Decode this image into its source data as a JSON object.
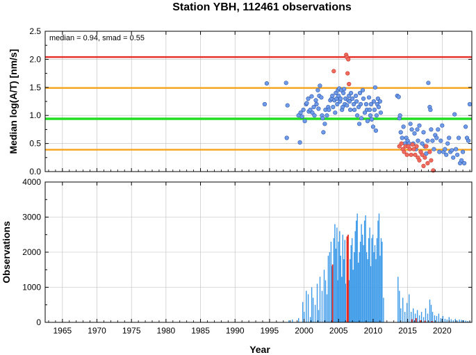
{
  "chart_data": [
    {
      "type": "scatter",
      "title": "Station YBH, 112461 observations",
      "ylabel": "Median log(A/T) [nm/s]",
      "annotation": "median = 0.94, smad = 0.55",
      "xlim": [
        1962.5,
        2024.3
      ],
      "ylim": [
        0.0,
        2.5
      ],
      "yticks": [
        "0.0",
        "0.5",
        "1.0",
        "1.5",
        "2.0",
        "2.5"
      ],
      "grid": true,
      "reference_lines": [
        {
          "y": 2.04,
          "color": "#e8302b"
        },
        {
          "y": 1.49,
          "color": "#f5a623"
        },
        {
          "y": 0.94,
          "color": "#22dd22"
        },
        {
          "y": 0.39,
          "color": "#f5a623"
        }
      ],
      "series": [
        {
          "color": "#6f9be8",
          "points": [
            [
              1994.3,
              1.2
            ],
            [
              1994.6,
              1.57
            ],
            [
              1997.4,
              1.58
            ],
            [
              1997.5,
              0.6
            ],
            [
              1997.6,
              1.18
            ],
            [
              1999.2,
              1.0
            ],
            [
              1999.4,
              0.52
            ],
            [
              1999.5,
              1.05
            ],
            [
              1999.7,
              0.98
            ],
            [
              1999.9,
              1.1
            ],
            [
              2000.1,
              0.9
            ],
            [
              2000.3,
              1.2
            ],
            [
              2000.4,
              1.22
            ],
            [
              2000.6,
              1.3
            ],
            [
              2000.7,
              1.07
            ],
            [
              2000.9,
              1.1
            ],
            [
              2001.1,
              1.34
            ],
            [
              2001.2,
              1.05
            ],
            [
              2001.4,
              1.15
            ],
            [
              2001.5,
              1.0
            ],
            [
              2001.7,
              1.27
            ],
            [
              2001.8,
              1.2
            ],
            [
              2002.0,
              1.45
            ],
            [
              2002.1,
              1.12
            ],
            [
              2002.2,
              1.35
            ],
            [
              2002.3,
              1.53
            ],
            [
              2002.5,
              1.32
            ],
            [
              2002.6,
              1.0
            ],
            [
              2002.7,
              0.95
            ],
            [
              2002.8,
              0.7
            ],
            [
              2003.0,
              0.85
            ],
            [
              2003.1,
              1.1
            ],
            [
              2003.3,
              1.0
            ],
            [
              2003.5,
              1.15
            ],
            [
              2003.6,
              1.1
            ],
            [
              2003.8,
              1.27
            ],
            [
              2004.0,
              1.3
            ],
            [
              2004.1,
              1.35
            ],
            [
              2004.2,
              1.15
            ],
            [
              2004.4,
              1.27
            ],
            [
              2004.5,
              1.05
            ],
            [
              2004.6,
              1.4
            ],
            [
              2004.7,
              1.3
            ],
            [
              2004.8,
              1.2
            ],
            [
              2004.9,
              1.45
            ],
            [
              2005.0,
              1.35
            ],
            [
              2005.1,
              1.48
            ],
            [
              2005.2,
              1.25
            ],
            [
              2005.3,
              1.3
            ],
            [
              2005.4,
              1.45
            ],
            [
              2005.5,
              1.1
            ],
            [
              2005.6,
              1.15
            ],
            [
              2005.7,
              1.4
            ],
            [
              2005.8,
              1.47
            ],
            [
              2005.9,
              1.2
            ],
            [
              2006.0,
              1.3
            ],
            [
              2006.2,
              1.18
            ],
            [
              2006.4,
              1.27
            ],
            [
              2006.5,
              1.35
            ],
            [
              2006.6,
              1.25
            ],
            [
              2006.7,
              1.1
            ],
            [
              2006.8,
              1.4
            ],
            [
              2007.0,
              1.3
            ],
            [
              2007.2,
              1.2
            ],
            [
              2007.3,
              1.1
            ],
            [
              2007.5,
              1.35
            ],
            [
              2007.6,
              1.25
            ],
            [
              2007.7,
              1.0
            ],
            [
              2007.9,
              1.15
            ],
            [
              2008.0,
              0.85
            ],
            [
              2008.1,
              1.4
            ],
            [
              2008.2,
              1.2
            ],
            [
              2008.3,
              0.95
            ],
            [
              2008.5,
              1.45
            ],
            [
              2008.6,
              1.3
            ],
            [
              2008.8,
              1.05
            ],
            [
              2009.0,
              1.2
            ],
            [
              2009.1,
              1.1
            ],
            [
              2009.2,
              0.9
            ],
            [
              2009.4,
              1.32
            ],
            [
              2009.5,
              1.1
            ],
            [
              2009.6,
              1.0
            ],
            [
              2009.7,
              1.2
            ],
            [
              2009.8,
              0.93
            ],
            [
              2010.0,
              0.8
            ],
            [
              2010.1,
              1.25
            ],
            [
              2010.2,
              1.1
            ],
            [
              2010.3,
              1.5
            ],
            [
              2010.4,
              0.73
            ],
            [
              2010.5,
              1.0
            ],
            [
              2010.6,
              1.2
            ],
            [
              2010.7,
              1.3
            ],
            [
              2010.8,
              1.15
            ],
            [
              2011.0,
              1.25
            ],
            [
              2011.1,
              1.05
            ],
            [
              2013.5,
              1.35
            ],
            [
              2013.7,
              1.33
            ],
            [
              2013.8,
              0.95
            ],
            [
              2013.9,
              1.0
            ],
            [
              2014.0,
              0.7
            ],
            [
              2014.2,
              0.6
            ],
            [
              2014.4,
              0.8
            ],
            [
              2014.6,
              0.5
            ],
            [
              2014.8,
              0.6
            ],
            [
              2015.0,
              0.55
            ],
            [
              2015.2,
              0.5
            ],
            [
              2015.4,
              0.85
            ],
            [
              2015.6,
              0.75
            ],
            [
              2015.8,
              0.5
            ],
            [
              2016.0,
              0.68
            ],
            [
              2016.2,
              0.4
            ],
            [
              2016.4,
              0.75
            ],
            [
              2016.5,
              0.55
            ],
            [
              2016.7,
              0.82
            ],
            [
              2016.9,
              0.35
            ],
            [
              2017.1,
              0.5
            ],
            [
              2017.3,
              0.7
            ],
            [
              2017.5,
              0.45
            ],
            [
              2017.7,
              0.32
            ],
            [
              2017.9,
              0.55
            ],
            [
              2018.0,
              1.58
            ],
            [
              2018.2,
              1.15
            ],
            [
              2018.3,
              1.1
            ],
            [
              2018.4,
              0.75
            ],
            [
              2018.6,
              0.55
            ],
            [
              2018.8,
              0.4
            ],
            [
              2019.0,
              0.65
            ],
            [
              2019.2,
              0.6
            ],
            [
              2019.4,
              0.75
            ],
            [
              2019.6,
              0.35
            ],
            [
              2019.8,
              0.55
            ],
            [
              2020.0,
              0.82
            ],
            [
              2020.2,
              0.35
            ],
            [
              2020.4,
              0.4
            ],
            [
              2020.6,
              0.3
            ],
            [
              2020.8,
              0.5
            ],
            [
              2021.0,
              0.6
            ],
            [
              2021.2,
              0.35
            ],
            [
              2021.4,
              0.38
            ],
            [
              2021.6,
              0.25
            ],
            [
              2021.8,
              1.02
            ],
            [
              2022.0,
              0.4
            ],
            [
              2022.2,
              0.3
            ],
            [
              2022.4,
              0.6
            ],
            [
              2022.6,
              0.15
            ],
            [
              2022.8,
              0.2
            ],
            [
              2023.0,
              0.35
            ],
            [
              2023.2,
              0.15
            ],
            [
              2023.4,
              0.8
            ],
            [
              2023.6,
              0.6
            ],
            [
              2023.8,
              0.55
            ],
            [
              2024.0,
              1.2
            ]
          ]
        },
        {
          "color": "#f06a5e",
          "points": [
            [
              2004.3,
              1.79
            ],
            [
              2006.1,
              2.08
            ],
            [
              2006.2,
              2.04
            ],
            [
              2006.3,
              1.75
            ],
            [
              2006.4,
              2.0
            ],
            [
              2006.5,
              1.56
            ],
            [
              2013.8,
              0.45
            ],
            [
              2014.1,
              0.5
            ],
            [
              2014.3,
              0.4
            ],
            [
              2014.5,
              0.35
            ],
            [
              2014.7,
              0.45
            ],
            [
              2014.9,
              0.3
            ],
            [
              2015.1,
              0.45
            ],
            [
              2015.3,
              0.4
            ],
            [
              2015.5,
              0.3
            ],
            [
              2015.7,
              0.48
            ],
            [
              2015.9,
              0.4
            ],
            [
              2016.1,
              0.3
            ],
            [
              2016.3,
              0.45
            ],
            [
              2016.5,
              0.25
            ],
            [
              2016.7,
              0.2
            ],
            [
              2016.9,
              0.35
            ],
            [
              2017.1,
              0.3
            ],
            [
              2017.3,
              0.1
            ],
            [
              2017.5,
              0.25
            ],
            [
              2017.7,
              0.45
            ],
            [
              2017.9,
              0.15
            ],
            [
              2018.2,
              0.35
            ],
            [
              2018.4,
              0.2
            ],
            [
              2018.7,
              0.02
            ]
          ]
        }
      ]
    },
    {
      "type": "bar",
      "ylabel": "Observations",
      "xlabel": "Year",
      "xlim": [
        1962.5,
        2024.3
      ],
      "ylim": [
        0,
        4000
      ],
      "xticks": [
        "1965",
        "1970",
        "1975",
        "1980",
        "1985",
        "1990",
        "1995",
        "2000",
        "2005",
        "2010",
        "2015",
        "2020"
      ],
      "yticks": [
        "0",
        "1000",
        "2000",
        "3000",
        "4000"
      ],
      "grid": true,
      "series": [
        {
          "color": "#3c9ae8",
          "x": [
            1997.8,
            1998.3,
            1999.2,
            1999.8,
            2000.0,
            2000.3,
            2000.6,
            2000.9,
            2001.1,
            2001.3,
            2001.6,
            2001.9,
            2002.1,
            2002.3,
            2002.6,
            2002.9,
            2003.1,
            2003.3,
            2003.5,
            2003.7,
            2003.9,
            2004.0,
            2004.15,
            2004.3,
            2004.45,
            2004.6,
            2004.75,
            2004.85,
            2005.0,
            2005.15,
            2005.3,
            2005.45,
            2005.6,
            2005.75,
            2005.9,
            2006.0,
            2006.5,
            2006.65,
            2006.8,
            2006.95,
            2007.1,
            2007.25,
            2007.4,
            2007.55,
            2007.7,
            2007.85,
            2008.0,
            2008.15,
            2008.3,
            2008.45,
            2008.6,
            2008.75,
            2008.9,
            2009.05,
            2009.2,
            2009.35,
            2009.5,
            2009.65,
            2009.8,
            2009.95,
            2010.1,
            2010.25,
            2010.4,
            2010.55,
            2010.7,
            2010.85,
            2011.0,
            2011.15,
            2011.3,
            2011.5,
            2013.6,
            2013.8,
            2014.0,
            2014.3,
            2014.6,
            2014.9,
            2015.2,
            2015.5,
            2015.8,
            2016.1,
            2016.4,
            2016.7,
            2017.0,
            2017.3,
            2017.6,
            2017.9,
            2018.2,
            2018.4,
            2018.6,
            2018.9,
            2019.2,
            2019.5,
            2019.8,
            2020.1,
            2020.4,
            2020.7,
            2021.0,
            2021.3,
            2021.6,
            2021.9,
            2022.2,
            2022.5,
            2022.8,
            2023.1,
            2023.4,
            2023.7,
            2024.0
          ],
          "values": [
            60,
            80,
            120,
            580,
            300,
            900,
            800,
            150,
            1000,
            700,
            500,
            1100,
            350,
            1300,
            900,
            1500,
            1200,
            800,
            1900,
            2000,
            2300,
            1600,
            1400,
            2400,
            2800,
            2100,
            2700,
            1200,
            2300,
            2600,
            1900,
            1300,
            2500,
            1800,
            2350,
            1100,
            1200,
            1800,
            2200,
            2400,
            1500,
            2000,
            2600,
            2900,
            3100,
            1700,
            2000,
            2300,
            2800,
            2500,
            2200,
            2900,
            3050,
            2000,
            1800,
            2400,
            2700,
            1600,
            2400,
            2500,
            2000,
            2200,
            1800,
            2400,
            2900,
            3100,
            1900,
            2400,
            2300,
            700,
            1300,
            900,
            400,
            700,
            300,
            550,
            800,
            300,
            400,
            250,
            350,
            200,
            300,
            150,
            400,
            250,
            650,
            500,
            300,
            200,
            180,
            250,
            120,
            180,
            100,
            80,
            150,
            90,
            60,
            100,
            50,
            80,
            70,
            60,
            50,
            40,
            30
          ]
        },
        {
          "color": "#e52a20",
          "x": [
            2004.1,
            2006.2,
            2006.35,
            2015.6,
            2016.2,
            2016.8,
            2017.5,
            2018.5
          ],
          "values": [
            1650,
            2450,
            2500,
            90,
            120,
            60,
            50,
            40
          ]
        }
      ]
    }
  ]
}
